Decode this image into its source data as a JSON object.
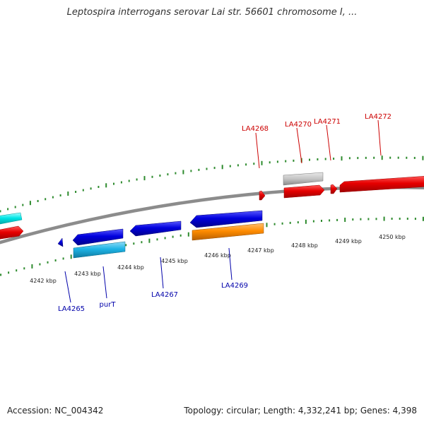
{
  "title": "Leptospira interrogans serovar Lai str. 56601 chromosome I, ...",
  "footer": {
    "accession_text": "Accession: NC_004342",
    "summary_text": "Topology: circular; Length: 4,332,241 bp; Genes: 4,398"
  },
  "colors": {
    "backbone": "#8c8c8c",
    "tick_marks": "#2e8b2e",
    "forward_label": "#cc0000",
    "reverse_label": "#0000aa"
  },
  "tick_labels": [
    "4242 kbp",
    "4243 kbp",
    "4244 kbp",
    "4245 kbp",
    "4246 kbp",
    "4247 kbp",
    "4248 kbp",
    "4249 kbp",
    "4250 kbp"
  ],
  "gene_labels": {
    "LA4265": "LA4265",
    "purT": "purT",
    "LA4267": "LA4267",
    "LA4268": "LA4268",
    "LA4269": "LA4269",
    "LA4270": "LA4270",
    "LA4271": "LA4271",
    "LA4272": "LA4272"
  },
  "features": [
    {
      "id": "cyan-left",
      "color": "#00e5e5",
      "strand": "forward"
    },
    {
      "id": "red-left",
      "color": "#e60000",
      "strand": "forward"
    },
    {
      "id": "LA4265",
      "color": "#0000dd",
      "strand": "reverse"
    },
    {
      "id": "blue-1",
      "color": "#0000dd",
      "strand": "reverse"
    },
    {
      "id": "purT",
      "color": "#1eb4e6",
      "strand": "reverse"
    },
    {
      "id": "LA4267",
      "color": "#0000dd",
      "strand": "reverse"
    },
    {
      "id": "blue-big",
      "color": "#0000dd",
      "strand": "reverse"
    },
    {
      "id": "LA4269",
      "color": "#ff8c00",
      "strand": "reverse"
    },
    {
      "id": "LA4268",
      "color": "#e60000",
      "strand": "forward"
    },
    {
      "id": "LA4270-gray",
      "color": "#bdbdbd",
      "strand": "forward"
    },
    {
      "id": "LA4270",
      "color": "#e60000",
      "strand": "forward"
    },
    {
      "id": "LA4271",
      "color": "#e60000",
      "strand": "forward"
    },
    {
      "id": "LA4272",
      "color": "#e60000",
      "strand": "forward"
    }
  ]
}
